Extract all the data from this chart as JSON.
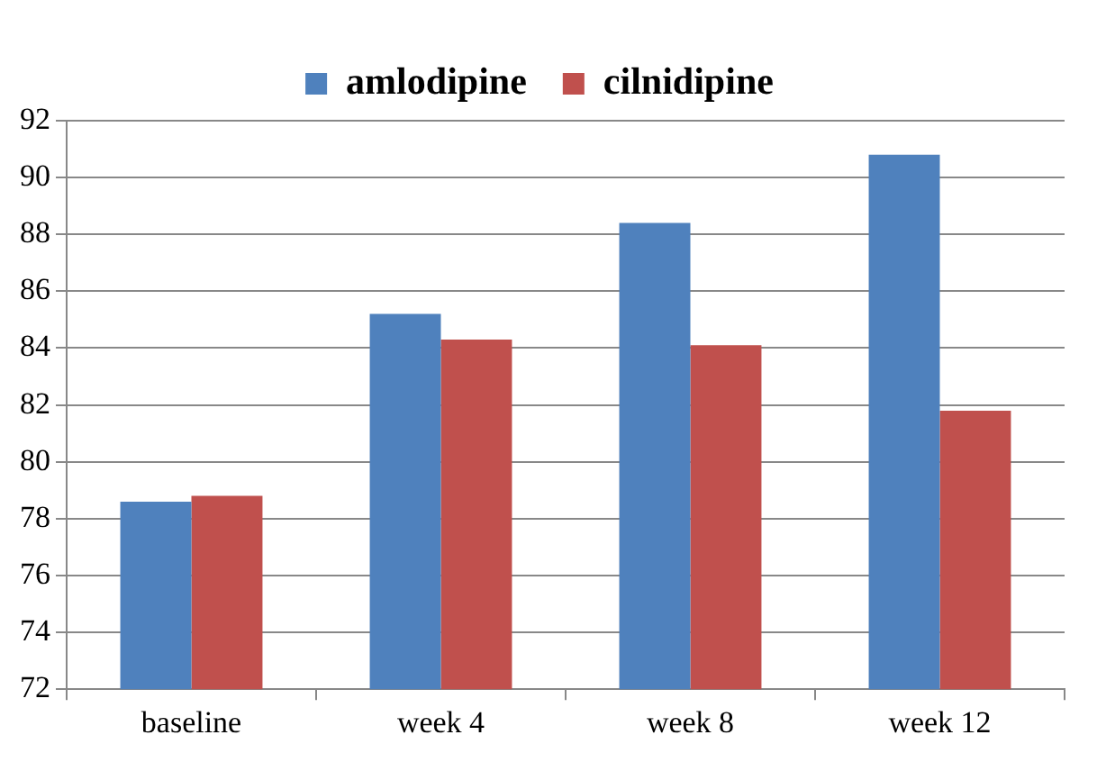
{
  "chart_data": {
    "type": "bar",
    "categories": [
      "baseline",
      "week 4",
      "week 8",
      "week 12"
    ],
    "series": [
      {
        "name": "amlodipine",
        "color": "#4f81bd",
        "values": [
          78.6,
          85.2,
          88.4,
          90.8
        ]
      },
      {
        "name": "cilnidipine",
        "color": "#c0504d",
        "values": [
          78.8,
          84.3,
          84.1,
          81.8
        ]
      }
    ],
    "ylim": [
      72,
      92
    ],
    "yticks": [
      72,
      74,
      76,
      78,
      80,
      82,
      84,
      86,
      88,
      90,
      92
    ],
    "grid": "y",
    "legend": "top"
  }
}
